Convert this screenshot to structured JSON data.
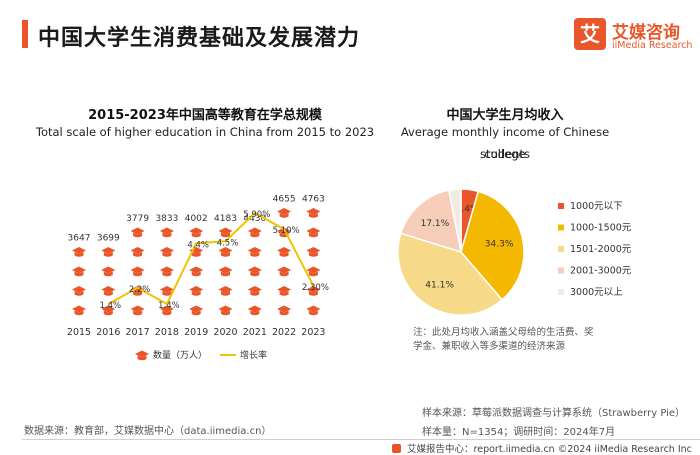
{
  "header": {
    "title": "中国大学生消费基础及发展潜力",
    "logo_cn": "艾媒咨询",
    "logo_en": "iiMedia Research",
    "logo_char": "艾"
  },
  "chart_data": [
    {
      "type": "bar+line",
      "title": "2015-2023年中国高等教育在学总规模",
      "subtitle": "Total scale of higher education in China from 2015 to 2023",
      "categories": [
        "2015",
        "2016",
        "2017",
        "2018",
        "2019",
        "2020",
        "2021",
        "2022",
        "2023"
      ],
      "series": [
        {
          "name": "数量（万人）",
          "values": [
            3647,
            3699,
            3779,
            3833,
            4002,
            4183,
            4430,
            4655,
            4763
          ],
          "labels": [
            "3647",
            "3699",
            "3779",
            "3833",
            "4002",
            "4183",
            "4430",
            "4655",
            "4763"
          ],
          "mark": "graduation-cap-icon stack",
          "color": "#e8562a"
        },
        {
          "name": "增长率",
          "values": [
            null,
            1.4,
            2.2,
            1.4,
            4.4,
            4.5,
            5.9,
            5.1,
            2.3
          ],
          "labels": [
            "",
            "1.4%",
            "2.2%",
            "1.4%",
            "4.4%",
            "4.5%",
            "5.90%",
            "5.10%",
            "2.30%"
          ],
          "color": "#f2c200"
        }
      ],
      "legend": [
        "数量（万人）",
        "增长率"
      ],
      "legend_position": "bottom"
    },
    {
      "type": "pie",
      "title": "中国大学生月均收入",
      "subtitle_line1": "Average monthly income of Chinese college",
      "subtitle_line2": "students",
      "categories": [
        "1000元以下",
        "1000-1500元",
        "1501-2000元",
        "2001-3000元",
        "3000元以上"
      ],
      "values": [
        4.4,
        34.3,
        41.1,
        17.1,
        3.1
      ],
      "labels": [
        "4.4%",
        "34.3%",
        "41.1%",
        "17.1%",
        ""
      ],
      "colors": [
        "#e8562a",
        "#f5b800",
        "#f7d98a",
        "#f6cdb8",
        "#f0ebe3"
      ],
      "legend_position": "right"
    }
  ],
  "note": {
    "line1": "注：此处月均收入涵盖父母给的生活费、奖",
    "line2": "学金、兼职收入等多渠道的经济来源"
  },
  "source_left": "数据来源：教育部，艾媒数据中心（data.iimedia.cn）",
  "source_right": {
    "line1": "样本来源：草莓派数据调查与计算系统（Strawberry Pie）",
    "line2": "样本量：N=1354；调研时间：2024年7月"
  },
  "footer": "艾媒报告中心：report.iimedia.cn    ©2024  iiMedia Research  Inc"
}
